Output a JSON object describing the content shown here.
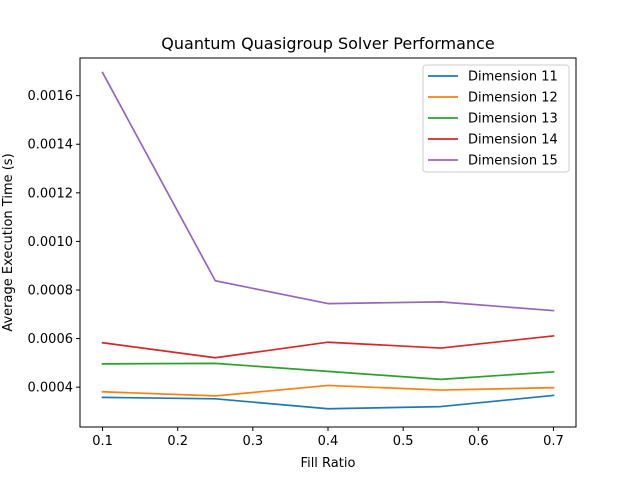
{
  "chart_data": {
    "type": "line",
    "title": "Quantum Quasigroup Solver Performance",
    "xlabel": "Fill Ratio",
    "ylabel": "Average Execution Time (s)",
    "x": [
      0.1,
      0.25,
      0.4,
      0.55,
      0.7
    ],
    "xlim": [
      0.07,
      0.73
    ],
    "ylim": [
      0.000236,
      0.001755
    ],
    "xticks": [
      0.1,
      0.2,
      0.3,
      0.4,
      0.5,
      0.6,
      0.7
    ],
    "xtick_labels": [
      "0.1",
      "0.2",
      "0.3",
      "0.4",
      "0.5",
      "0.6",
      "0.7"
    ],
    "yticks": [
      0.0004,
      0.0006,
      0.0008,
      0.001,
      0.0012,
      0.0014,
      0.0016
    ],
    "ytick_labels": [
      "0.0004",
      "0.0006",
      "0.0008",
      "0.0010",
      "0.0012",
      "0.0014",
      "0.0016"
    ],
    "grid": false,
    "legend_position": "top-right",
    "series": [
      {
        "name": "Dimension 11",
        "color": "#1f77b4",
        "values": [
          0.000358,
          0.000352,
          0.000311,
          0.00032,
          0.000366
        ]
      },
      {
        "name": "Dimension 12",
        "color": "#ff7f0e",
        "values": [
          0.000381,
          0.000364,
          0.000407,
          0.000388,
          0.000398
        ]
      },
      {
        "name": "Dimension 13",
        "color": "#2ca02c",
        "values": [
          0.000496,
          0.000498,
          0.000465,
          0.000432,
          0.000463
        ]
      },
      {
        "name": "Dimension 14",
        "color": "#d62728",
        "values": [
          0.000583,
          0.000521,
          0.000585,
          0.000561,
          0.000611
        ]
      },
      {
        "name": "Dimension 15",
        "color": "#9467bd",
        "values": [
          0.001695,
          0.000838,
          0.000744,
          0.000751,
          0.000715
        ]
      }
    ]
  }
}
